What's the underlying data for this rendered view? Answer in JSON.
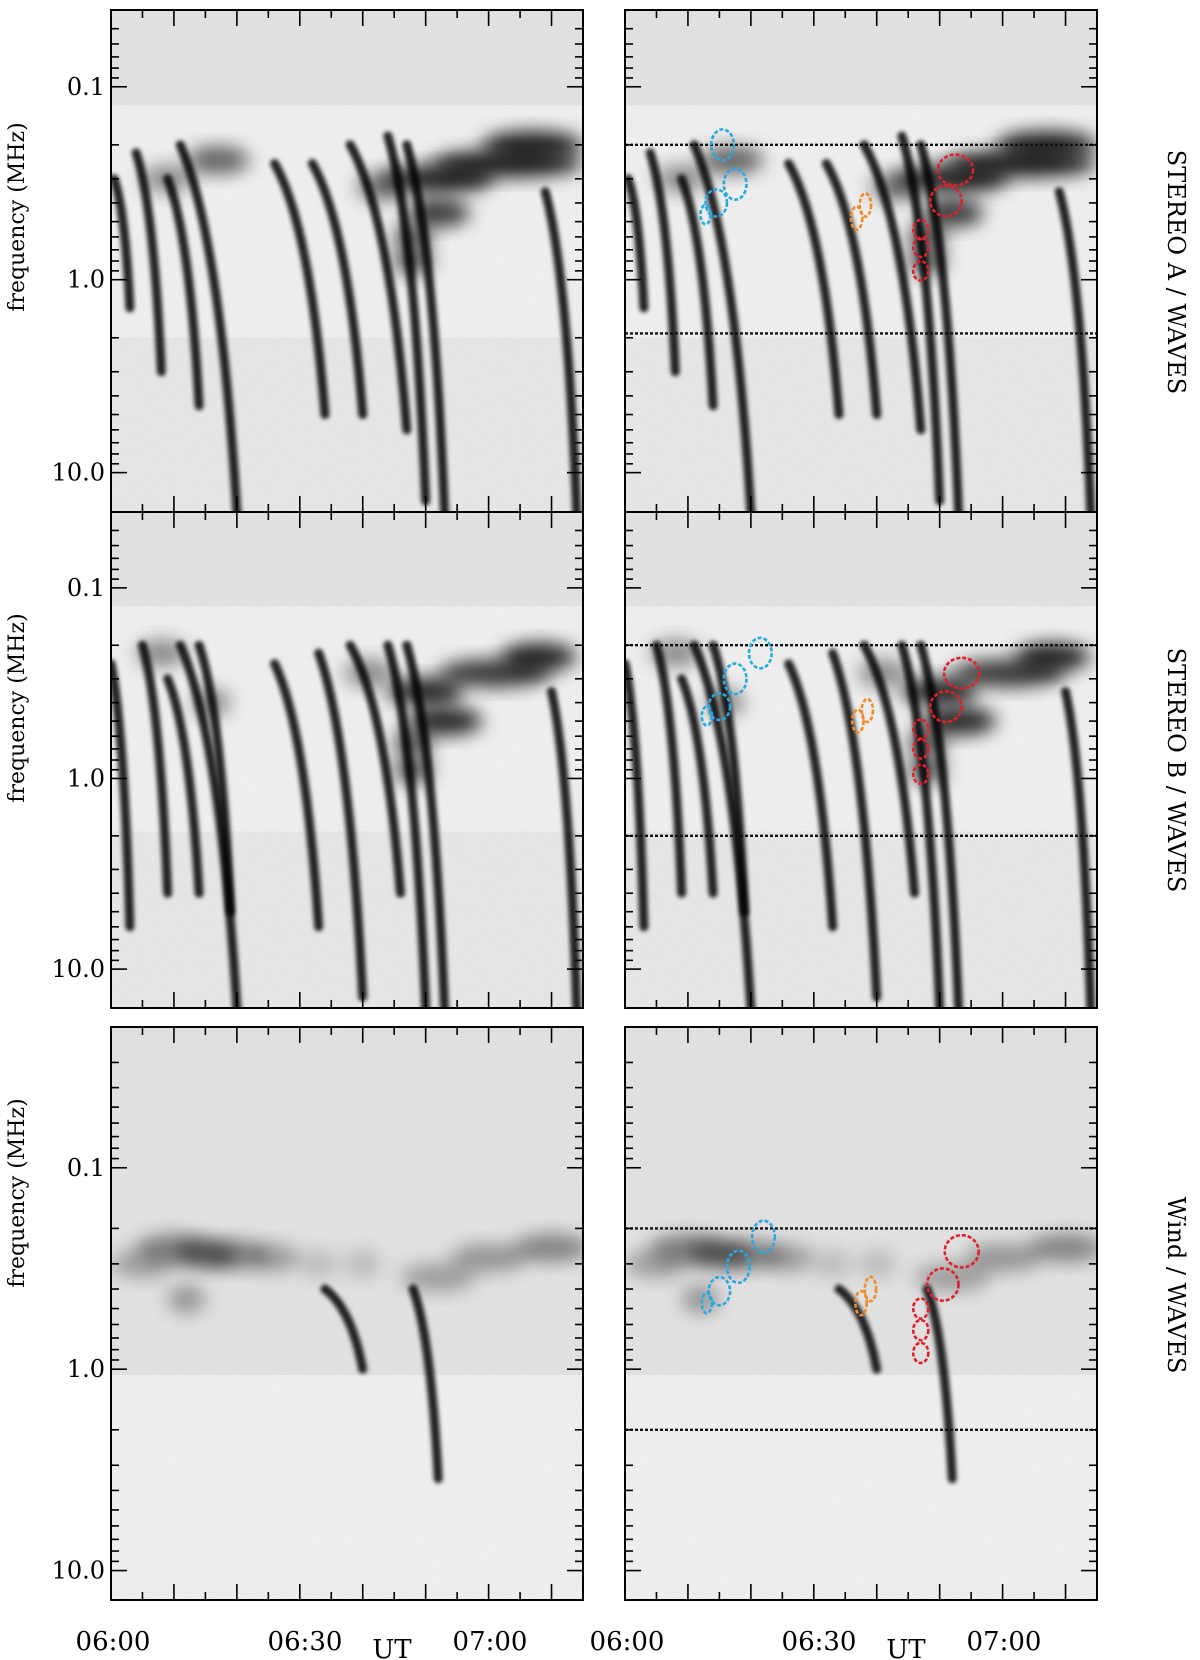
{
  "figure": {
    "time_axis_label": "UT",
    "ylabel": "frequency (MHz)",
    "time_ticks": [
      "06:00",
      "06:30",
      "07:00"
    ],
    "background": "#ffffff",
    "frame_color": "#000000"
  },
  "chart_data": [
    {
      "type": "heatmap",
      "instrument": "STEREO A / WAVES",
      "instrument_color": "#e0202a",
      "x_range_min": [
        0,
        75
      ],
      "y_scale": "log",
      "y_inverted": true,
      "ylim_mhz": [
        0.04,
        16
      ],
      "ytick_labels": [
        "0.1",
        "1.0",
        "10.0"
      ],
      "band_boundaries_mhz": [
        0.125,
        2.0
      ],
      "dotted_reference_lines_mhz": [
        0.2,
        1.9
      ],
      "bursts": [
        {
          "kind": "type III",
          "start_min": 0.5,
          "start_freq_mhz": 0.3,
          "end_min": 3,
          "end_freq_mhz": 1.4
        },
        {
          "kind": "type III",
          "start_min": 4,
          "start_freq_mhz": 0.22,
          "end_min": 8,
          "end_freq_mhz": 3.0
        },
        {
          "kind": "type III",
          "start_min": 9,
          "start_freq_mhz": 0.3,
          "end_min": 14,
          "end_freq_mhz": 4.5
        },
        {
          "kind": "type III",
          "start_min": 11,
          "start_freq_mhz": 0.2,
          "end_min": 20,
          "end_freq_mhz": 16
        },
        {
          "kind": "type III",
          "start_min": 26,
          "start_freq_mhz": 0.25,
          "end_min": 34,
          "end_freq_mhz": 5.0
        },
        {
          "kind": "type III",
          "start_min": 32,
          "start_freq_mhz": 0.25,
          "end_min": 40,
          "end_freq_mhz": 5.0
        },
        {
          "kind": "type III",
          "start_min": 38,
          "start_freq_mhz": 0.2,
          "end_min": 47,
          "end_freq_mhz": 6.0
        },
        {
          "kind": "type III",
          "start_min": 44,
          "start_freq_mhz": 0.18,
          "end_min": 50,
          "end_freq_mhz": 14
        },
        {
          "kind": "type III",
          "start_min": 47,
          "start_freq_mhz": 0.2,
          "end_min": 53,
          "end_freq_mhz": 16
        },
        {
          "kind": "type III",
          "start_min": 69,
          "start_freq_mhz": 0.35,
          "end_min": 74,
          "end_freq_mhz": 16
        }
      ],
      "blobs": [
        {
          "t_min": 17,
          "f_mhz": 0.24,
          "w_min": 5,
          "intensity": 0.7
        },
        {
          "t_min": 9,
          "f_mhz": 0.3,
          "w_min": 4,
          "intensity": 0.5
        },
        {
          "t_min": 43,
          "f_mhz": 0.33,
          "w_min": 4,
          "intensity": 0.6
        },
        {
          "t_min": 52,
          "f_mhz": 0.3,
          "w_min": 9,
          "intensity": 1.0
        },
        {
          "t_min": 63,
          "f_mhz": 0.25,
          "w_min": 12,
          "intensity": 1.0
        },
        {
          "t_min": 67,
          "f_mhz": 0.2,
          "w_min": 8,
          "intensity": 1.0
        },
        {
          "t_min": 52,
          "f_mhz": 0.45,
          "w_min": 5,
          "intensity": 0.9
        },
        {
          "t_min": 48,
          "f_mhz": 0.6,
          "w_min": 3,
          "intensity": 0.8
        },
        {
          "t_min": 48,
          "f_mhz": 0.8,
          "w_min": 3,
          "intensity": 0.8
        }
      ],
      "ellipses": [
        {
          "color": "#2aa8e0",
          "t_min": 15.5,
          "f_mhz": 0.2,
          "dt_min": 3.6,
          "dlog": 0.08
        },
        {
          "color": "#2aa8e0",
          "t_min": 17.5,
          "f_mhz": 0.32,
          "dt_min": 3.6,
          "dlog": 0.08
        },
        {
          "color": "#2aa8e0",
          "t_min": 14.5,
          "f_mhz": 0.4,
          "dt_min": 3.4,
          "dlog": 0.07
        },
        {
          "color": "#2aa8e0",
          "t_min": 12.8,
          "f_mhz": 0.46,
          "dt_min": 1.6,
          "dlog": 0.05
        },
        {
          "color": "#f08a2a",
          "t_min": 38.2,
          "f_mhz": 0.41,
          "dt_min": 1.8,
          "dlog": 0.06
        },
        {
          "color": "#f08a2a",
          "t_min": 36.8,
          "f_mhz": 0.48,
          "dt_min": 1.8,
          "dlog": 0.06
        },
        {
          "color": "#e0202a",
          "t_min": 52.5,
          "f_mhz": 0.27,
          "dt_min": 5.6,
          "dlog": 0.08
        },
        {
          "color": "#e0202a",
          "t_min": 51,
          "f_mhz": 0.39,
          "dt_min": 5.0,
          "dlog": 0.08
        },
        {
          "color": "#e0202a",
          "t_min": 47,
          "f_mhz": 0.55,
          "dt_min": 2.4,
          "dlog": 0.05
        },
        {
          "color": "#e0202a",
          "t_min": 47,
          "f_mhz": 0.68,
          "dt_min": 2.4,
          "dlog": 0.05
        },
        {
          "color": "#e0202a",
          "t_min": 47,
          "f_mhz": 0.9,
          "dt_min": 2.4,
          "dlog": 0.05
        }
      ]
    },
    {
      "type": "heatmap",
      "instrument": "STEREO B / WAVES",
      "instrument_color": "#2a3ae0",
      "x_range_min": [
        0,
        75
      ],
      "y_scale": "log",
      "y_inverted": true,
      "ylim_mhz": [
        0.04,
        16
      ],
      "ytick_labels": [
        "0.1",
        "1.0",
        "10.0"
      ],
      "band_boundaries_mhz": [
        0.125,
        1.9
      ],
      "dotted_reference_lines_mhz": [
        0.2,
        2.0
      ],
      "bursts": [
        {
          "kind": "type III",
          "start_min": 0,
          "start_freq_mhz": 0.25,
          "end_min": 3,
          "end_freq_mhz": 6.0
        },
        {
          "kind": "type III",
          "start_min": 5,
          "start_freq_mhz": 0.2,
          "end_min": 9,
          "end_freq_mhz": 4.0
        },
        {
          "kind": "type III",
          "start_min": 9,
          "start_freq_mhz": 0.3,
          "end_min": 14,
          "end_freq_mhz": 4.0
        },
        {
          "kind": "type III",
          "start_min": 11,
          "start_freq_mhz": 0.2,
          "end_min": 20,
          "end_freq_mhz": 16
        },
        {
          "kind": "type III",
          "start_min": 14,
          "start_freq_mhz": 0.2,
          "end_min": 19,
          "end_freq_mhz": 5.0
        },
        {
          "kind": "type III",
          "start_min": 26,
          "start_freq_mhz": 0.25,
          "end_min": 33,
          "end_freq_mhz": 6.0
        },
        {
          "kind": "type III",
          "start_min": 33,
          "start_freq_mhz": 0.22,
          "end_min": 40,
          "end_freq_mhz": 14
        },
        {
          "kind": "type III",
          "start_min": 38,
          "start_freq_mhz": 0.2,
          "end_min": 46,
          "end_freq_mhz": 4.0
        },
        {
          "kind": "type III",
          "start_min": 44,
          "start_freq_mhz": 0.2,
          "end_min": 50,
          "end_freq_mhz": 16
        },
        {
          "kind": "type III",
          "start_min": 47,
          "start_freq_mhz": 0.2,
          "end_min": 53,
          "end_freq_mhz": 16
        },
        {
          "kind": "type III",
          "start_min": 70,
          "start_freq_mhz": 0.35,
          "end_min": 74,
          "end_freq_mhz": 16
        }
      ],
      "blobs": [
        {
          "t_min": 8,
          "f_mhz": 0.22,
          "w_min": 4,
          "intensity": 0.5
        },
        {
          "t_min": 16,
          "f_mhz": 0.4,
          "w_min": 3,
          "intensity": 0.5
        },
        {
          "t_min": 41,
          "f_mhz": 0.28,
          "w_min": 4,
          "intensity": 0.5
        },
        {
          "t_min": 50,
          "f_mhz": 0.35,
          "w_min": 6,
          "intensity": 1.0
        },
        {
          "t_min": 53,
          "f_mhz": 0.5,
          "w_min": 6,
          "intensity": 1.0
        },
        {
          "t_min": 61,
          "f_mhz": 0.28,
          "w_min": 9,
          "intensity": 0.9
        },
        {
          "t_min": 68,
          "f_mhz": 0.23,
          "w_min": 6,
          "intensity": 1.0
        },
        {
          "t_min": 48,
          "f_mhz": 0.65,
          "w_min": 3,
          "intensity": 0.8
        },
        {
          "t_min": 48,
          "f_mhz": 0.9,
          "w_min": 3,
          "intensity": 0.8
        }
      ],
      "ellipses": [
        {
          "color": "#2aa8e0",
          "t_min": 21.5,
          "f_mhz": 0.22,
          "dt_min": 3.6,
          "dlog": 0.08
        },
        {
          "color": "#2aa8e0",
          "t_min": 17.5,
          "f_mhz": 0.3,
          "dt_min": 3.6,
          "dlog": 0.08
        },
        {
          "color": "#2aa8e0",
          "t_min": 15,
          "f_mhz": 0.42,
          "dt_min": 3.4,
          "dlog": 0.07
        },
        {
          "color": "#2aa8e0",
          "t_min": 13,
          "f_mhz": 0.47,
          "dt_min": 1.6,
          "dlog": 0.05
        },
        {
          "color": "#f08a2a",
          "t_min": 38.5,
          "f_mhz": 0.44,
          "dt_min": 1.8,
          "dlog": 0.06
        },
        {
          "color": "#f08a2a",
          "t_min": 37,
          "f_mhz": 0.5,
          "dt_min": 1.8,
          "dlog": 0.06
        },
        {
          "color": "#e0202a",
          "t_min": 53.5,
          "f_mhz": 0.28,
          "dt_min": 5.6,
          "dlog": 0.08
        },
        {
          "color": "#e0202a",
          "t_min": 51,
          "f_mhz": 0.42,
          "dt_min": 5.0,
          "dlog": 0.08
        },
        {
          "color": "#e0202a",
          "t_min": 47,
          "f_mhz": 0.55,
          "dt_min": 2.4,
          "dlog": 0.05
        },
        {
          "color": "#e0202a",
          "t_min": 47,
          "f_mhz": 0.7,
          "dt_min": 2.4,
          "dlog": 0.05
        },
        {
          "color": "#e0202a",
          "t_min": 47,
          "f_mhz": 0.95,
          "dt_min": 2.4,
          "dlog": 0.05
        }
      ]
    },
    {
      "type": "heatmap",
      "instrument": "Wind / WAVES",
      "instrument_color": "#000000",
      "x_range_min": [
        0,
        75
      ],
      "y_scale": "log",
      "y_inverted": true,
      "ylim_mhz": [
        0.02,
        14
      ],
      "ytick_labels": [
        "0.1",
        "1.0",
        "10.0"
      ],
      "band_boundaries_mhz": [
        1.07
      ],
      "dotted_reference_lines_mhz": [
        0.2,
        2.0
      ],
      "bursts": [
        {
          "kind": "type III",
          "start_min": 48,
          "start_freq_mhz": 0.4,
          "end_min": 52,
          "end_freq_mhz": 3.5
        },
        {
          "kind": "type III",
          "start_min": 34,
          "start_freq_mhz": 0.4,
          "end_min": 40,
          "end_freq_mhz": 1.0
        }
      ],
      "blobs": [
        {
          "t_min": 5,
          "f_mhz": 0.3,
          "w_min": 5,
          "intensity": 0.35
        },
        {
          "t_min": 10,
          "f_mhz": 0.25,
          "w_min": 6,
          "intensity": 0.5
        },
        {
          "t_min": 15,
          "f_mhz": 0.27,
          "w_min": 5,
          "intensity": 0.6
        },
        {
          "t_min": 20,
          "f_mhz": 0.27,
          "w_min": 5,
          "intensity": 0.5
        },
        {
          "t_min": 26,
          "f_mhz": 0.28,
          "w_min": 4,
          "intensity": 0.35
        },
        {
          "t_min": 33,
          "f_mhz": 0.3,
          "w_min": 3,
          "intensity": 0.2
        },
        {
          "t_min": 40,
          "f_mhz": 0.3,
          "w_min": 3,
          "intensity": 0.2
        },
        {
          "t_min": 52,
          "f_mhz": 0.35,
          "w_min": 6,
          "intensity": 0.35
        },
        {
          "t_min": 60,
          "f_mhz": 0.28,
          "w_min": 6,
          "intensity": 0.4
        },
        {
          "t_min": 70,
          "f_mhz": 0.25,
          "w_min": 6,
          "intensity": 0.5
        },
        {
          "t_min": 12,
          "f_mhz": 0.45,
          "w_min": 3,
          "intensity": 0.4
        }
      ],
      "ellipses": [
        {
          "color": "#2aa8e0",
          "t_min": 22,
          "f_mhz": 0.22,
          "dt_min": 3.6,
          "dlog": 0.08
        },
        {
          "color": "#2aa8e0",
          "t_min": 18,
          "f_mhz": 0.31,
          "dt_min": 3.6,
          "dlog": 0.08
        },
        {
          "color": "#2aa8e0",
          "t_min": 15,
          "f_mhz": 0.41,
          "dt_min": 3.4,
          "dlog": 0.07
        },
        {
          "color": "#2aa8e0",
          "t_min": 13,
          "f_mhz": 0.47,
          "dt_min": 1.6,
          "dlog": 0.05
        },
        {
          "color": "#f08a2a",
          "t_min": 39,
          "f_mhz": 0.4,
          "dt_min": 1.8,
          "dlog": 0.06
        },
        {
          "color": "#f08a2a",
          "t_min": 37.5,
          "f_mhz": 0.47,
          "dt_min": 1.8,
          "dlog": 0.06
        },
        {
          "color": "#e0202a",
          "t_min": 53.5,
          "f_mhz": 0.26,
          "dt_min": 5.4,
          "dlog": 0.08
        },
        {
          "color": "#e0202a",
          "t_min": 50.5,
          "f_mhz": 0.38,
          "dt_min": 5.0,
          "dlog": 0.08
        },
        {
          "color": "#e0202a",
          "t_min": 47,
          "f_mhz": 0.5,
          "dt_min": 2.4,
          "dlog": 0.05
        },
        {
          "color": "#e0202a",
          "t_min": 47,
          "f_mhz": 0.64,
          "dt_min": 2.4,
          "dlog": 0.05
        },
        {
          "color": "#e0202a",
          "t_min": 47,
          "f_mhz": 0.83,
          "dt_min": 2.4,
          "dlog": 0.05
        }
      ]
    }
  ]
}
